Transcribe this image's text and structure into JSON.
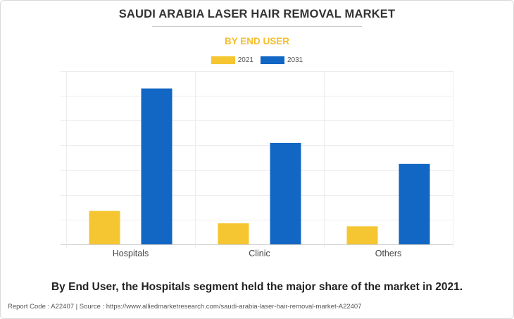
{
  "title": "SAUDI ARABIA LASER HAIR REMOVAL MARKET",
  "subtitle": "BY END USER",
  "caption": "By End User, the Hospitals segment held the major share of the market in 2021.",
  "footer": "Report Code : A22407  |  Source : https://www.alliedmarketresearch.com/saudi-arabia-laser-hair-removal-market-A22407",
  "colors": {
    "series_2021": "#f5c631",
    "series_2031": "#1266c4",
    "subtitle": "#f4bd2b"
  },
  "chart_data": {
    "type": "bar",
    "categories": [
      "Hospitals",
      "Clinic",
      "Others"
    ],
    "series": [
      {
        "name": "2021",
        "values": [
          13.5,
          8.5,
          7.3
        ]
      },
      {
        "name": "2031",
        "values": [
          63,
          41,
          32.5
        ]
      }
    ],
    "ylim": [
      0,
      70
    ],
    "ytick_step": 10,
    "grid": true,
    "legend": "top-center",
    "xlabel": "",
    "ylabel": ""
  }
}
